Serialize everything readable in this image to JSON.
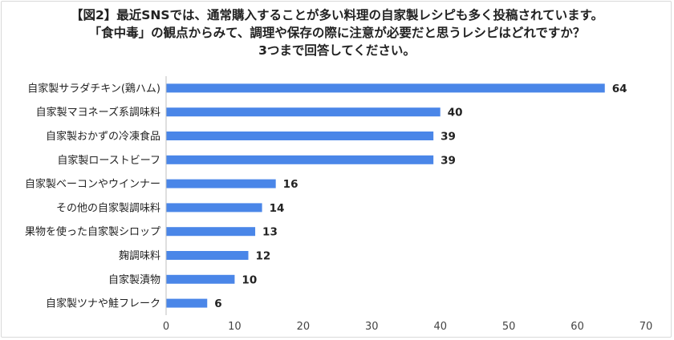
{
  "title_lines": [
    "【図2】最近SNSでは、通常購入することが多い料理の自家製レシピも多く投稿されています。",
    "「食中毒」の観点からみて、調理や保存の際に注意が必要だと思うレシピはどれですか？",
    "3つまで回答してください。"
  ],
  "chart_data": {
    "type": "bar",
    "orientation": "horizontal",
    "categories": [
      "自家製サラダチキン(鶏ハム)",
      "自家製マヨネーズ系調味料",
      "自家製おかずの冷凍食品",
      "自家製ローストビーフ",
      "自家製ベーコンやウインナー",
      "その他の自家製調味料",
      "果物を使った自家製シロップ",
      "麹調味料",
      "自家製漬物",
      "自家製ツナや鮭フレーク"
    ],
    "values": [
      64,
      40,
      39,
      39,
      16,
      14,
      13,
      12,
      10,
      6
    ],
    "xlim": [
      0,
      70
    ],
    "xticks": [
      0,
      10,
      20,
      30,
      40,
      50,
      60,
      70
    ],
    "bar_color": "#4a86e8",
    "grid": false,
    "data_labels": true
  }
}
